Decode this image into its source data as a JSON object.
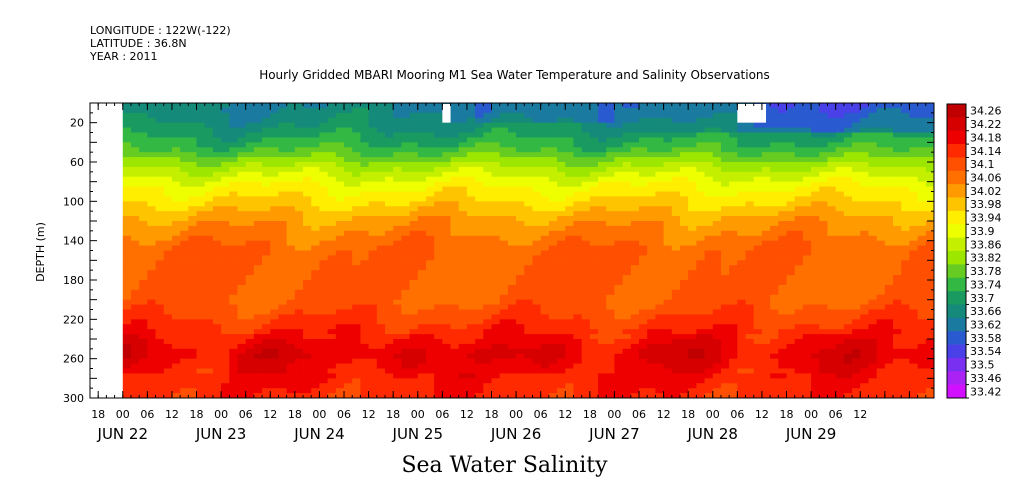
{
  "header": {
    "longitude": "LONGITUDE : 122W(-122)",
    "latitude": "LATITUDE : 36.8N",
    "year": "YEAR : 2011"
  },
  "chart_data": {
    "type": "heatmap",
    "title": "Hourly Gridded MBARI Mooring M1 Sea Water Temperature and Salinity Observations",
    "bottom_title": "Sea Water Salinity",
    "ylabel": "DEPTH (m)",
    "xlabel": "",
    "y_axis": {
      "range": [
        0,
        300
      ],
      "inverted": true,
      "tick_labels": [
        20,
        60,
        100,
        140,
        180,
        220,
        260,
        300
      ]
    },
    "x_axis": {
      "range_hours": [
        -8,
        198
      ],
      "hour_tick_labels": [
        "18",
        "00",
        "06",
        "12",
        "18",
        "00",
        "06",
        "12",
        "18",
        "00",
        "06",
        "12",
        "18",
        "00",
        "06",
        "12",
        "18",
        "00",
        "06",
        "12",
        "18",
        "00",
        "06",
        "12",
        "18",
        "00",
        "06",
        "12",
        "18",
        "00",
        "06",
        "12"
      ],
      "day_labels": [
        "JUN 22",
        "JUN 23",
        "JUN 24",
        "JUN 25",
        "JUN 26",
        "JUN 27",
        "JUN 28",
        "JUN 29"
      ]
    },
    "data_start_hour": 0,
    "colorbar": {
      "levels": [
        "34.26",
        "34.22",
        "34.18",
        "34.14",
        "34.1",
        "34.06",
        "34.02",
        "33.98",
        "33.94",
        "33.9",
        "33.86",
        "33.82",
        "33.78",
        "33.74",
        "33.7",
        "33.66",
        "33.62",
        "33.58",
        "33.54",
        "33.5",
        "33.46",
        "33.42"
      ],
      "colors": [
        "#c00000",
        "#d60000",
        "#ee0000",
        "#ff2a00",
        "#ff4f00",
        "#ff7000",
        "#ff9a00",
        "#ffc400",
        "#ffee00",
        "#eeff00",
        "#c4f000",
        "#9ce600",
        "#66cc22",
        "#33b844",
        "#199a60",
        "#158a7a",
        "#1a7aa0",
        "#2a5ad0",
        "#4a40e8",
        "#7a30f0",
        "#aa22f4",
        "#d010ff"
      ]
    },
    "depth_profile": [
      {
        "depth": 5,
        "salinity": 33.66
      },
      {
        "depth": 25,
        "salinity": 33.7
      },
      {
        "depth": 45,
        "salinity": 33.76
      },
      {
        "depth": 65,
        "salinity": 33.86
      },
      {
        "depth": 85,
        "salinity": 33.94
      },
      {
        "depth": 100,
        "salinity": 33.98
      },
      {
        "depth": 120,
        "salinity": 34.04
      },
      {
        "depth": 150,
        "salinity": 34.1
      },
      {
        "depth": 200,
        "salinity": 34.1
      },
      {
        "depth": 230,
        "salinity": 34.16
      },
      {
        "depth": 255,
        "salinity": 34.22
      },
      {
        "depth": 280,
        "salinity": 34.18
      },
      {
        "depth": 300,
        "salinity": 34.16
      }
    ],
    "missing_blocks": [
      {
        "hour_start": 78,
        "hour_end": 80,
        "depth_start": 0,
        "depth_end": 20
      },
      {
        "hour_start": 150,
        "hour_end": 157,
        "depth_start": 0,
        "depth_end": 20
      }
    ]
  }
}
